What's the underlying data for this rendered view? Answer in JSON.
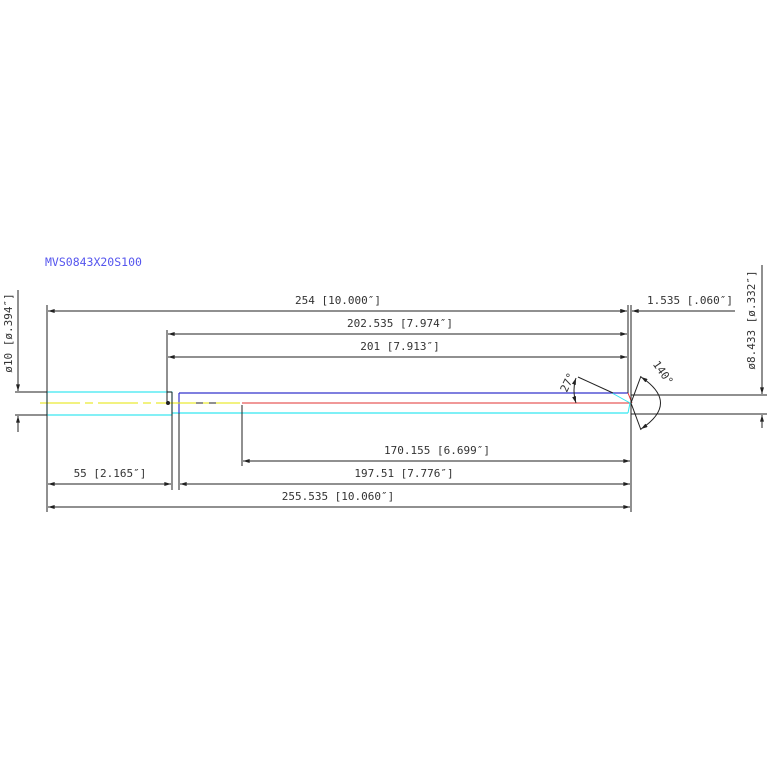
{
  "title": "MVS0843X20S100",
  "dimensions": {
    "overall_flute": "254 [10.000″]",
    "to_neck_start": "202.535 [7.974″]",
    "neck_length": "201 [7.913″]",
    "flute_length": "170.155 [6.699″]",
    "shank_length": "55 [2.165″]",
    "body_length": "197.51 [7.776″]",
    "overall_length": "255.535 [10.060″]",
    "tip_length": "1.535 [.060″]",
    "shank_diameter": "ø10 [ø.394″]",
    "tip_diameter": "ø8.433 [ø.332″]",
    "chamfer_angle": "27°",
    "point_angle": "140°"
  },
  "colors": {
    "title": "#5555ee",
    "shank": "#33e6f0",
    "body": "#3333cc",
    "centerline": "#e6e600",
    "flute_axis": "#e03030",
    "dimension": "#222222"
  }
}
